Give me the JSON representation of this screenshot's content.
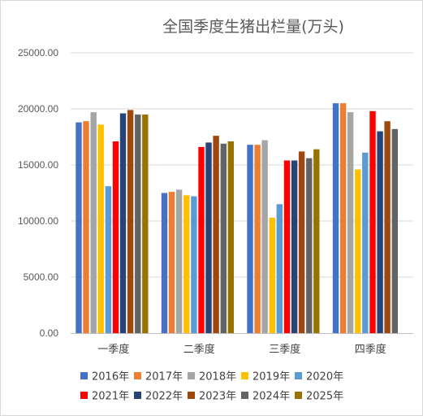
{
  "chart_data": {
    "type": "bar",
    "title": "全国季度生猪出栏量(万头)",
    "xlabel": "",
    "ylabel": "",
    "ylim": [
      0,
      25000
    ],
    "yticks": [
      "0.00",
      "5000.00",
      "10000.00",
      "15000.00",
      "20000.00",
      "25000.00"
    ],
    "grid": true,
    "legend_position": "bottom",
    "categories": [
      "一季度",
      "二季度",
      "三季度",
      "四季度"
    ],
    "series": [
      {
        "name": "2016年",
        "color": "#4472c4",
        "values": [
          18800,
          12500,
          16800,
          20500
        ]
      },
      {
        "name": "2017年",
        "color": "#ed7d31",
        "values": [
          18900,
          12600,
          16800,
          20500
        ]
      },
      {
        "name": "2018年",
        "color": "#a5a5a5",
        "values": [
          19700,
          12800,
          17200,
          19700
        ]
      },
      {
        "name": "2019年",
        "color": "#ffc000",
        "values": [
          18600,
          12300,
          10300,
          14600
        ]
      },
      {
        "name": "2020年",
        "color": "#5b9bd5",
        "values": [
          13100,
          12200,
          11500,
          16100
        ]
      },
      {
        "name": "2021年",
        "color": "#ff0000",
        "values": [
          17100,
          16600,
          15400,
          19800
        ]
      },
      {
        "name": "2022年",
        "color": "#264478",
        "values": [
          19600,
          17000,
          15400,
          18000
        ]
      },
      {
        "name": "2023年",
        "color": "#9e480e",
        "values": [
          19900,
          17600,
          16200,
          18900
        ]
      },
      {
        "name": "2024年",
        "color": "#636363",
        "values": [
          19500,
          16900,
          15600,
          18200
        ]
      },
      {
        "name": "2025年",
        "color": "#997300",
        "values": [
          19500,
          17100,
          16400,
          null
        ]
      }
    ]
  }
}
